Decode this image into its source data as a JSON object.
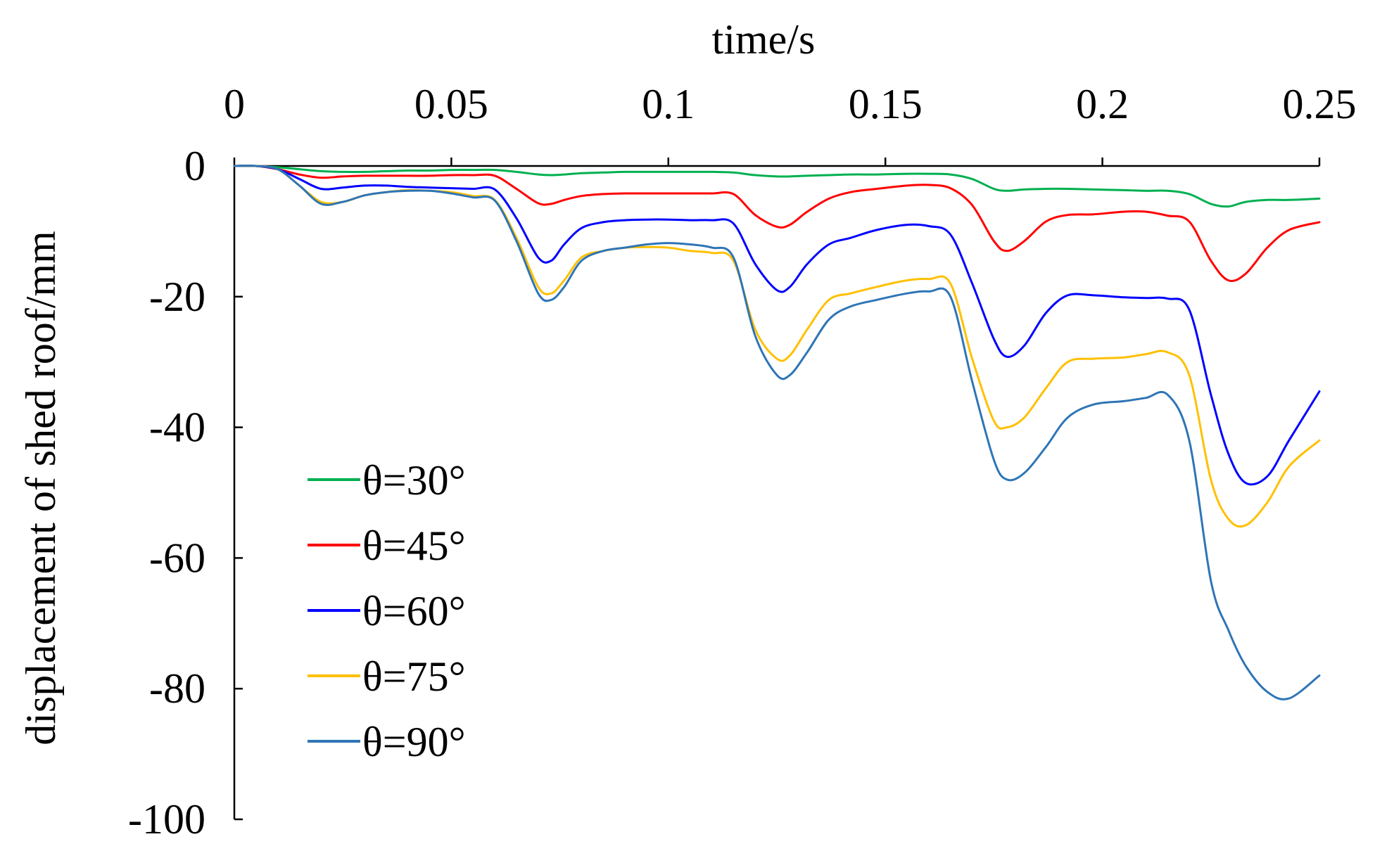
{
  "chart_data": {
    "type": "line",
    "title": "",
    "xlabel": "time/s",
    "ylabel": "displacement of shed roof/mm",
    "xlim": [
      0,
      0.25
    ],
    "ylim": [
      -100,
      0
    ],
    "xticks": [
      "0",
      "0.05",
      "0.1",
      "0.15",
      "0.2",
      "0.25"
    ],
    "yticks": [
      "0",
      "-20",
      "-40",
      "-60",
      "-80",
      "-100"
    ],
    "x_axis_position": "top",
    "grid": false,
    "legend_position": "bottom-left",
    "x": [
      0,
      0.005,
      0.01,
      0.015,
      0.02,
      0.025,
      0.03,
      0.035,
      0.04,
      0.045,
      0.05,
      0.055,
      0.06,
      0.065,
      0.07,
      0.073,
      0.076,
      0.08,
      0.085,
      0.09,
      0.095,
      0.1,
      0.105,
      0.11,
      0.115,
      0.12,
      0.125,
      0.128,
      0.132,
      0.137,
      0.142,
      0.148,
      0.155,
      0.16,
      0.165,
      0.17,
      0.175,
      0.178,
      0.182,
      0.187,
      0.192,
      0.198,
      0.205,
      0.21,
      0.215,
      0.22,
      0.225,
      0.229,
      0.233,
      0.238,
      0.243,
      0.25
    ],
    "series": [
      {
        "name": "θ=30°",
        "color": "#00b050",
        "values": [
          0,
          0,
          -0.2,
          -0.5,
          -0.8,
          -0.9,
          -0.9,
          -0.8,
          -0.7,
          -0.7,
          -0.6,
          -0.6,
          -0.6,
          -0.9,
          -1.3,
          -1.4,
          -1.3,
          -1.1,
          -1.0,
          -0.9,
          -0.9,
          -0.9,
          -0.9,
          -0.9,
          -1.0,
          -1.4,
          -1.6,
          -1.6,
          -1.5,
          -1.4,
          -1.3,
          -1.3,
          -1.2,
          -1.2,
          -1.3,
          -2.0,
          -3.5,
          -3.8,
          -3.6,
          -3.5,
          -3.5,
          -3.6,
          -3.7,
          -3.8,
          -3.8,
          -4.3,
          -5.8,
          -6.2,
          -5.5,
          -5.2,
          -5.2,
          -5.0
        ]
      },
      {
        "name": "θ=45°",
        "color": "#ff0000",
        "values": [
          0,
          0,
          -0.5,
          -1.3,
          -1.8,
          -1.6,
          -1.5,
          -1.5,
          -1.5,
          -1.5,
          -1.4,
          -1.4,
          -1.5,
          -3.5,
          -5.7,
          -5.8,
          -5.2,
          -4.6,
          -4.3,
          -4.2,
          -4.2,
          -4.2,
          -4.2,
          -4.2,
          -4.3,
          -7.5,
          -9.3,
          -9.0,
          -7.0,
          -5.0,
          -4.0,
          -3.5,
          -3.0,
          -2.9,
          -3.4,
          -6.0,
          -11.5,
          -13.0,
          -11.5,
          -8.5,
          -7.5,
          -7.4,
          -7.0,
          -7.0,
          -7.6,
          -8.5,
          -14.5,
          -17.5,
          -16.5,
          -12.5,
          -9.8,
          -8.6
        ]
      },
      {
        "name": "θ=60°",
        "color": "#0000ff",
        "values": [
          0,
          0,
          -0.5,
          -2.0,
          -3.5,
          -3.3,
          -3.0,
          -3.0,
          -3.2,
          -3.3,
          -3.4,
          -3.5,
          -3.6,
          -8.0,
          -14.0,
          -14.5,
          -12.0,
          -9.5,
          -8.6,
          -8.3,
          -8.2,
          -8.2,
          -8.3,
          -8.3,
          -8.8,
          -15.0,
          -19.0,
          -18.5,
          -15.0,
          -12.0,
          -11.0,
          -9.8,
          -9.0,
          -9.2,
          -10.5,
          -18.0,
          -26.5,
          -29.2,
          -27.5,
          -22.5,
          -19.8,
          -19.8,
          -20.1,
          -20.2,
          -20.3,
          -22.0,
          -35.0,
          -44.0,
          -48.5,
          -47.5,
          -42.0,
          -34.5
        ]
      },
      {
        "name": "θ=75°",
        "color": "#ffc000",
        "values": [
          0,
          0,
          -0.5,
          -3.0,
          -5.5,
          -5.5,
          -4.5,
          -4.0,
          -3.7,
          -3.8,
          -4.0,
          -4.6,
          -5.2,
          -11.0,
          -18.5,
          -19.5,
          -17.5,
          -14.0,
          -13.0,
          -12.5,
          -12.4,
          -12.5,
          -13.0,
          -13.3,
          -14.5,
          -25.0,
          -29.5,
          -29.0,
          -25.0,
          -20.5,
          -19.5,
          -18.5,
          -17.5,
          -17.3,
          -18.0,
          -29.5,
          -39.0,
          -40.0,
          -38.5,
          -34.0,
          -30.0,
          -29.5,
          -29.3,
          -28.8,
          -28.5,
          -32.0,
          -48.0,
          -54.0,
          -55.0,
          -51.5,
          -46.0,
          -42.0
        ]
      },
      {
        "name": "θ=90°",
        "color": "#2e75b6",
        "values": [
          0,
          0,
          -0.5,
          -3.0,
          -5.8,
          -5.5,
          -4.5,
          -4.0,
          -3.8,
          -3.8,
          -4.2,
          -4.8,
          -5.3,
          -11.5,
          -19.5,
          -20.5,
          -18.5,
          -14.5,
          -13.0,
          -12.5,
          -12.0,
          -11.8,
          -12.0,
          -12.5,
          -14.0,
          -26.0,
          -32.0,
          -32.0,
          -28.5,
          -23.5,
          -21.5,
          -20.5,
          -19.5,
          -19.2,
          -20.0,
          -33.0,
          -45.0,
          -48.0,
          -47.0,
          -43.0,
          -38.5,
          -36.5,
          -36.0,
          -35.5,
          -35.0,
          -42.0,
          -63.5,
          -71.0,
          -76.5,
          -80.5,
          -81.5,
          -78.0
        ]
      }
    ]
  }
}
